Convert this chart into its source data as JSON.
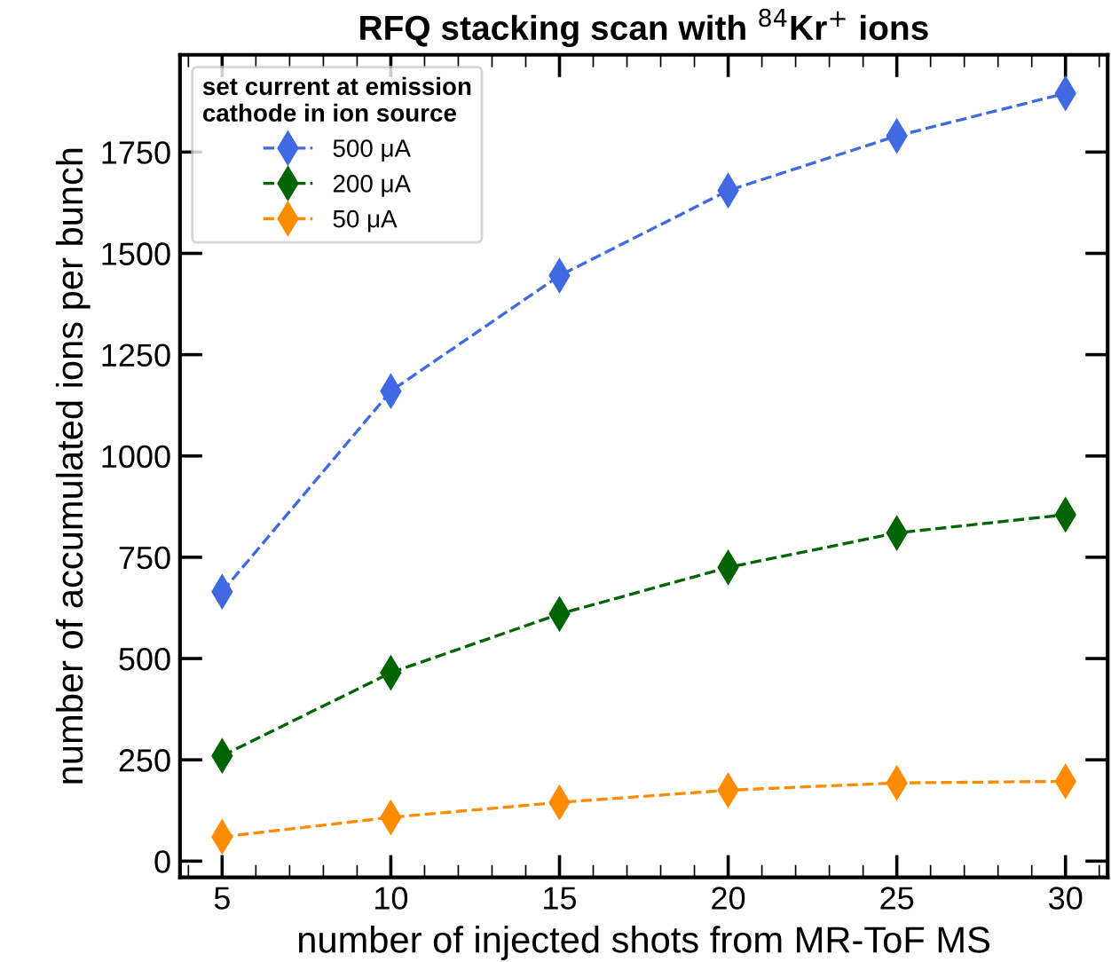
{
  "chart_data": {
    "type": "line",
    "title": "RFQ stacking scan with $^{84}$Kr$^{+}$ ions",
    "xlabel": "number of injected shots from MR-ToF MS",
    "ylabel": "number of accumulated ions per bunch",
    "legend_title": "set current at emission\ncathode in ion source",
    "x": [
      5,
      10,
      15,
      20,
      25,
      30
    ],
    "series": [
      {
        "name": "500 μA",
        "color": "#4169e1",
        "values": [
          665,
          1160,
          1445,
          1655,
          1790,
          1895
        ]
      },
      {
        "name": "200 μA",
        "color": "#006400",
        "values": [
          260,
          465,
          610,
          725,
          810,
          855
        ]
      },
      {
        "name": "50 μA",
        "color": "#ff8c00",
        "values": [
          60,
          108,
          145,
          175,
          193,
          197
        ]
      }
    ],
    "xlim": [
      3.75,
      31.25
    ],
    "xticks": [
      5,
      10,
      15,
      20,
      25,
      30
    ],
    "ylim": [
      -40,
      1990
    ],
    "yticks": [
      0,
      250,
      500,
      750,
      1000,
      1250,
      1500,
      1750
    ],
    "grid": false,
    "legend": "top left",
    "marker": "diamond",
    "line_style": "dashed"
  }
}
